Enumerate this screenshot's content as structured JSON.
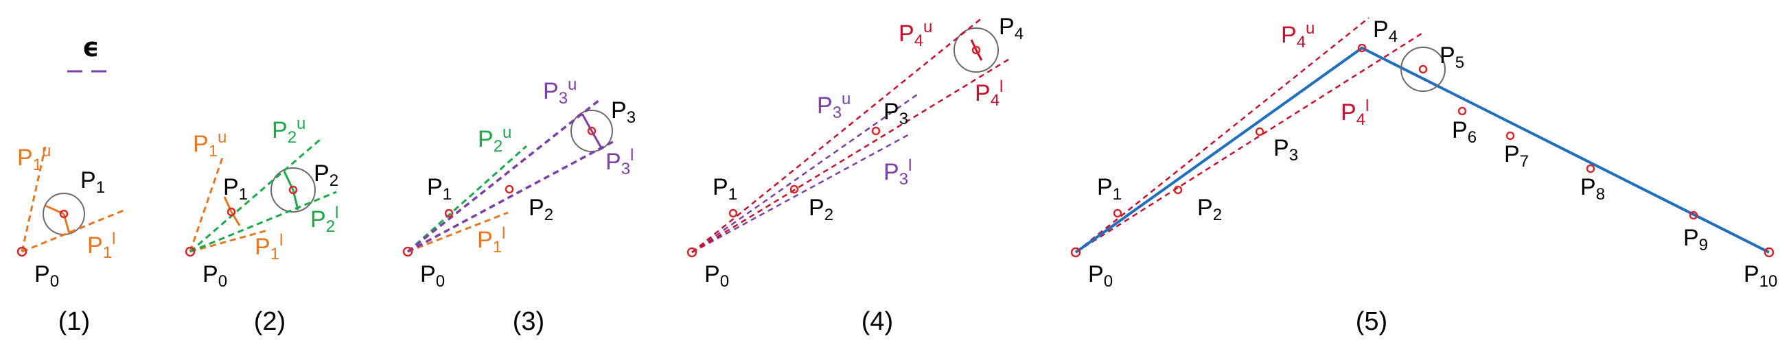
{
  "legend": {
    "epsilon_symbol": "ϵ"
  },
  "colors": {
    "black": "#000000",
    "orange": "#e87722",
    "green": "#1aaa4a",
    "purple": "#7b3fa6",
    "red": "#c8102e",
    "blue": "#1f6fbf",
    "point": "#d9262b",
    "circle": "#6b6b6b"
  },
  "panels": [
    {
      "caption": "(1)",
      "labels": [
        {
          "base": "P",
          "sub": "0",
          "sup": "",
          "color": "black"
        },
        {
          "base": "P",
          "sub": "1",
          "sup": "",
          "color": "black"
        },
        {
          "base": "P",
          "sub": "1",
          "sup": "u",
          "color": "orange"
        },
        {
          "base": "P",
          "sub": "1",
          "sup": "l",
          "color": "orange"
        }
      ]
    },
    {
      "caption": "(2)",
      "labels": [
        {
          "base": "P",
          "sub": "0",
          "sup": "",
          "color": "black"
        },
        {
          "base": "P",
          "sub": "1",
          "sup": "",
          "color": "black"
        },
        {
          "base": "P",
          "sub": "2",
          "sup": "",
          "color": "black"
        },
        {
          "base": "P",
          "sub": "1",
          "sup": "u",
          "color": "orange"
        },
        {
          "base": "P",
          "sub": "1",
          "sup": "l",
          "color": "orange"
        },
        {
          "base": "P",
          "sub": "2",
          "sup": "u",
          "color": "green"
        },
        {
          "base": "P",
          "sub": "2",
          "sup": "l",
          "color": "green"
        }
      ]
    },
    {
      "caption": "(3)",
      "labels": [
        {
          "base": "P",
          "sub": "0",
          "sup": "",
          "color": "black"
        },
        {
          "base": "P",
          "sub": "1",
          "sup": "",
          "color": "black"
        },
        {
          "base": "P",
          "sub": "2",
          "sup": "",
          "color": "black"
        },
        {
          "base": "P",
          "sub": "3",
          "sup": "",
          "color": "black"
        },
        {
          "base": "P",
          "sub": "2",
          "sup": "u",
          "color": "green"
        },
        {
          "base": "P",
          "sub": "1",
          "sup": "l",
          "color": "orange"
        },
        {
          "base": "P",
          "sub": "3",
          "sup": "u",
          "color": "purple"
        },
        {
          "base": "P",
          "sub": "3",
          "sup": "l",
          "color": "purple"
        }
      ]
    },
    {
      "caption": "(4)",
      "labels": [
        {
          "base": "P",
          "sub": "0",
          "sup": "",
          "color": "black"
        },
        {
          "base": "P",
          "sub": "1",
          "sup": "",
          "color": "black"
        },
        {
          "base": "P",
          "sub": "2",
          "sup": "",
          "color": "black"
        },
        {
          "base": "P",
          "sub": "3",
          "sup": "",
          "color": "black"
        },
        {
          "base": "P",
          "sub": "4",
          "sup": "",
          "color": "black"
        },
        {
          "base": "P",
          "sub": "3",
          "sup": "u",
          "color": "purple"
        },
        {
          "base": "P",
          "sub": "3",
          "sup": "l",
          "color": "purple"
        },
        {
          "base": "P",
          "sub": "4",
          "sup": "u",
          "color": "red"
        },
        {
          "base": "P",
          "sub": "4",
          "sup": "l",
          "color": "red"
        }
      ]
    },
    {
      "caption": "(5)",
      "labels": [
        {
          "base": "P",
          "sub": "0",
          "sup": "",
          "color": "black"
        },
        {
          "base": "P",
          "sub": "1",
          "sup": "",
          "color": "black"
        },
        {
          "base": "P",
          "sub": "2",
          "sup": "",
          "color": "black"
        },
        {
          "base": "P",
          "sub": "3",
          "sup": "",
          "color": "black"
        },
        {
          "base": "P",
          "sub": "4",
          "sup": "",
          "color": "black"
        },
        {
          "base": "P",
          "sub": "5",
          "sup": "",
          "color": "black"
        },
        {
          "base": "P",
          "sub": "6",
          "sup": "",
          "color": "black"
        },
        {
          "base": "P",
          "sub": "7",
          "sup": "",
          "color": "black"
        },
        {
          "base": "P",
          "sub": "8",
          "sup": "",
          "color": "black"
        },
        {
          "base": "P",
          "sub": "9",
          "sup": "",
          "color": "black"
        },
        {
          "base": "P",
          "sub": "10",
          "sup": "",
          "color": "black"
        },
        {
          "base": "P",
          "sub": "4",
          "sup": "u",
          "color": "red"
        },
        {
          "base": "P",
          "sub": "4",
          "sup": "l",
          "color": "red"
        }
      ]
    }
  ]
}
